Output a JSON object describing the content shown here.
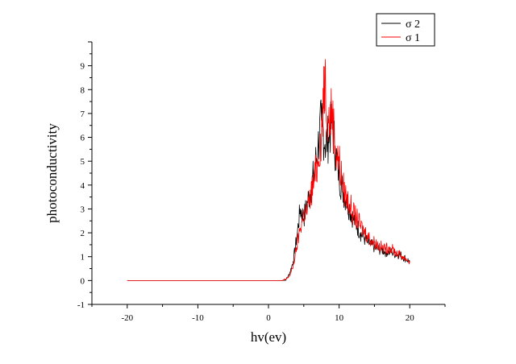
{
  "chart_data": {
    "type": "line",
    "xlabel": "hv(ev)",
    "ylabel": "photoconductivity",
    "xlim": [
      -25,
      25
    ],
    "ylim": [
      -1,
      10
    ],
    "x_ticks": [
      -20,
      -10,
      0,
      10,
      20
    ],
    "y_ticks": [
      -1,
      0,
      1,
      2,
      3,
      4,
      5,
      6,
      7,
      8,
      9
    ],
    "grid": false,
    "legend": {
      "placement": "top-right"
    },
    "series": [
      {
        "name": "σ 2",
        "color": "#000000",
        "x": [
          -20,
          0,
          2.0,
          2.5,
          3.0,
          3.5,
          4.0,
          4.5,
          5.0,
          5.5,
          6.0,
          6.5,
          7.0,
          7.5,
          8.0,
          8.5,
          9.0,
          9.5,
          10.0,
          10.5,
          11.0,
          11.5,
          12.0,
          12.5,
          13.0,
          13.5,
          14.0,
          14.5,
          15.0,
          15.5,
          16.0,
          16.5,
          17.0,
          17.5,
          18.0,
          18.5,
          19.0,
          19.5,
          20.0
        ],
        "y": [
          0,
          0,
          0,
          0.05,
          0.3,
          0.8,
          1.8,
          3.0,
          2.6,
          3.3,
          3.8,
          4.6,
          5.6,
          6.7,
          5.7,
          6.0,
          6.6,
          5.4,
          4.4,
          3.8,
          3.4,
          3.0,
          2.6,
          2.3,
          2.0,
          1.8,
          1.6,
          1.5,
          1.4,
          1.3,
          1.3,
          1.2,
          1.2,
          1.2,
          1.1,
          1.1,
          1.0,
          0.9,
          0.8
        ]
      },
      {
        "name": "σ 1",
        "color": "#ff0000",
        "x": [
          -20,
          0,
          2.0,
          2.5,
          3.0,
          3.5,
          4.0,
          4.5,
          5.0,
          5.5,
          6.0,
          6.5,
          7.0,
          7.5,
          7.8,
          8.0,
          8.5,
          9.0,
          9.5,
          10.0,
          10.5,
          11.0,
          11.5,
          12.0,
          12.5,
          13.0,
          13.5,
          14.0,
          14.5,
          15.0,
          15.5,
          16.0,
          16.5,
          17.0,
          17.5,
          18.0,
          18.5,
          19.0,
          19.5,
          20.0
        ],
        "y": [
          0,
          0,
          0,
          0.05,
          0.2,
          0.6,
          1.4,
          2.2,
          2.8,
          2.9,
          3.6,
          4.2,
          5.0,
          6.2,
          7.5,
          8.6,
          6.6,
          7.2,
          5.5,
          5.0,
          4.0,
          3.5,
          3.2,
          2.8,
          2.6,
          2.3,
          2.1,
          1.9,
          1.7,
          1.6,
          1.5,
          1.4,
          1.3,
          1.4,
          1.3,
          1.2,
          1.1,
          1.0,
          0.9,
          0.8
        ]
      }
    ]
  }
}
